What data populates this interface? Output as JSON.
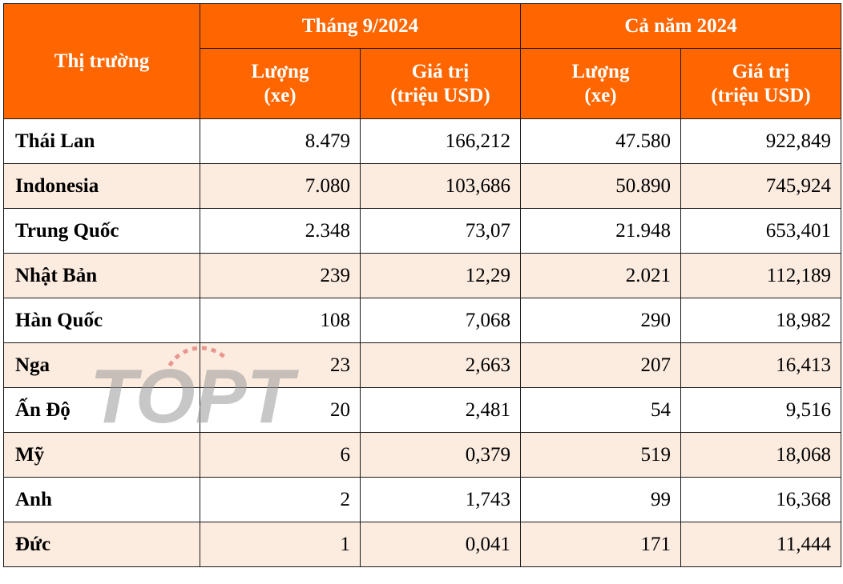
{
  "table": {
    "header": {
      "market_label": "Thị trường",
      "group_month": "Tháng 9/2024",
      "group_year": "Cả năm 2024",
      "qty_label_line1": "Lượng",
      "qty_label_line2": "(xe)",
      "value_label_line1": "Giá trị",
      "value_label_line2": "(triệu USD)"
    },
    "rows": [
      {
        "market": "Thái Lan",
        "month_qty": "8.479",
        "month_value": "166,212",
        "year_qty": "47.580",
        "year_value": "922,849"
      },
      {
        "market": "Indonesia",
        "month_qty": "7.080",
        "month_value": "103,686",
        "year_qty": "50.890",
        "year_value": "745,924"
      },
      {
        "market": "Trung Quốc",
        "month_qty": "2.348",
        "month_value": "73,07",
        "year_qty": "21.948",
        "year_value": "653,401"
      },
      {
        "market": "Nhật Bản",
        "month_qty": "239",
        "month_value": "12,29",
        "year_qty": "2.021",
        "year_value": "112,189"
      },
      {
        "market": "Hàn Quốc",
        "month_qty": "108",
        "month_value": "7,068",
        "year_qty": "290",
        "year_value": "18,982"
      },
      {
        "market": "Nga",
        "month_qty": "23",
        "month_value": "2,663",
        "year_qty": "207",
        "year_value": "16,413"
      },
      {
        "market": "Ấn Độ",
        "month_qty": "20",
        "month_value": "2,481",
        "year_qty": "54",
        "year_value": "9,516"
      },
      {
        "market": "Mỹ",
        "month_qty": "6",
        "month_value": "0,379",
        "year_qty": "519",
        "year_value": "18,068"
      },
      {
        "market": "Anh",
        "month_qty": "2",
        "month_value": "1,743",
        "year_qty": "99",
        "year_value": "16,368"
      },
      {
        "market": "Đức",
        "month_qty": "1",
        "month_value": "0,041",
        "year_qty": "171",
        "year_value": "11,444"
      }
    ]
  },
  "watermark": {
    "text": "TOPT",
    "color": "#9a9a9a",
    "accent": "#d9534f"
  },
  "colors": {
    "header_bg": "#ff6600",
    "header_text": "#ffffff",
    "stripe": "#fcebdf",
    "border": "#1a1a1a"
  }
}
